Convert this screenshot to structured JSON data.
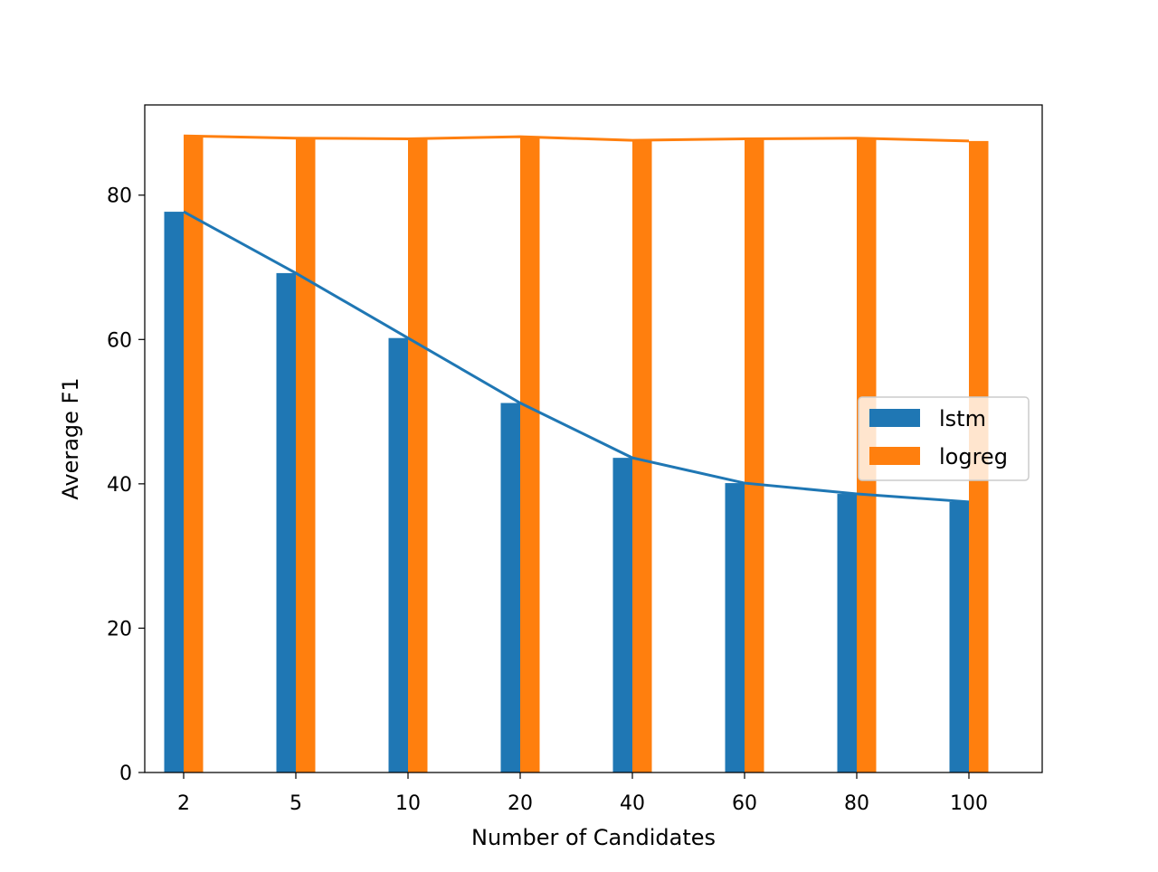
{
  "chart_data": {
    "type": "bar",
    "categories": [
      "2",
      "5",
      "10",
      "20",
      "40",
      "60",
      "80",
      "100"
    ],
    "series": [
      {
        "name": "lstm",
        "color": "#1f77b4",
        "values": [
          77.7,
          69.2,
          60.2,
          51.2,
          43.6,
          40.1,
          38.6,
          37.5
        ]
      },
      {
        "name": "logreg",
        "color": "#ff7f0e",
        "values": [
          88.2,
          87.9,
          87.8,
          88.1,
          87.6,
          87.8,
          87.9,
          87.5
        ]
      }
    ],
    "overlay": "line",
    "title": "",
    "xlabel": "Number of Candidates",
    "ylabel": "Average F1",
    "ylim": [
      0,
      92.5
    ],
    "yticks": [
      0,
      20,
      40,
      60,
      80
    ],
    "grid": false,
    "legend_position": "center-right"
  }
}
